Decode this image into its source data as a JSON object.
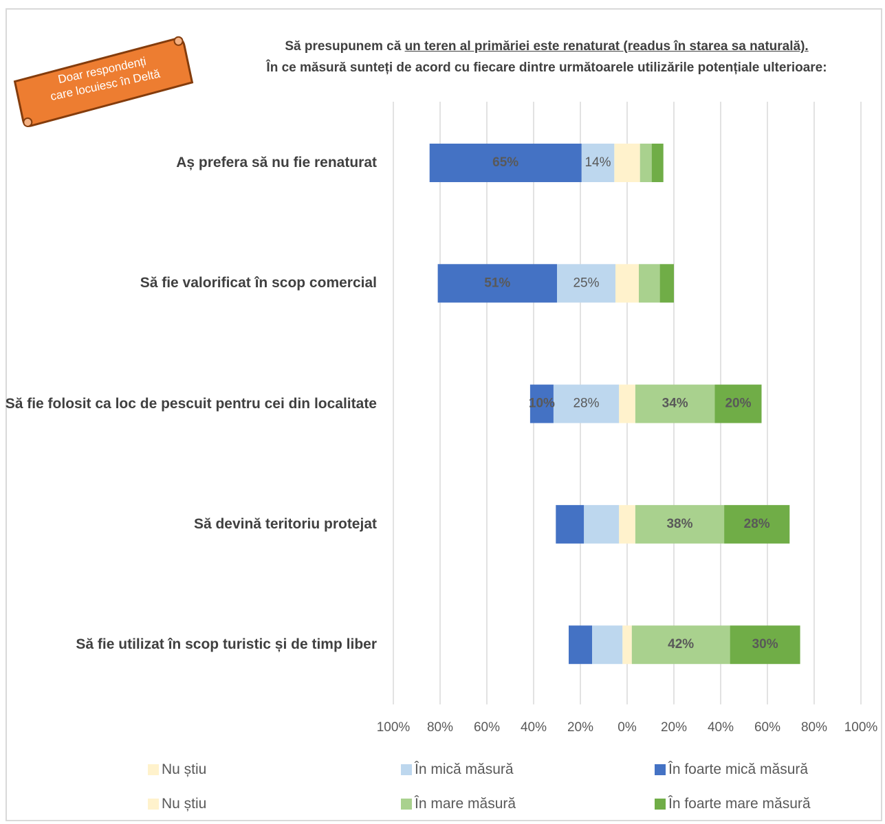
{
  "banner": [
    "Doar respondenți",
    "care locuiesc în Deltă"
  ],
  "chart_data": {
    "type": "diverging-bar",
    "title": "Să presupunem că",
    "title_underlined": "un teren al primăriei este renaturat (readus în starea sa naturală).",
    "title_rest": "În ce măsură sunteți de acord cu fiecare dintre următoarele utilizările potențiale ulterioare:",
    "categories": [
      "Aș prefera să nu fie renaturat",
      "Să fie valorificat în scop comercial",
      "Să fie folosit ca loc de pescuit pentru cei din localitate",
      "Să devină teritoriu protejat",
      "Să fie utilizat în scop turistic și de timp liber"
    ],
    "series": [
      {
        "name": "Nu știu",
        "color": "#fff2cc",
        "side": "left",
        "values": [
          5.5,
          5,
          3.5,
          3.5,
          2
        ]
      },
      {
        "name": "În mică măsură",
        "color": "#bdd7ee",
        "side": "left",
        "values": [
          14,
          25,
          28,
          15,
          13
        ],
        "value_labels": [
          "14%",
          "25%",
          "28%",
          null,
          null
        ]
      },
      {
        "name": "În foarte mică măsură",
        "color": "#4472c4",
        "side": "left",
        "values": [
          65,
          51,
          10,
          12,
          10
        ],
        "value_labels": [
          "65%",
          "51%",
          "10%",
          null,
          null
        ]
      },
      {
        "name": "Nu știu",
        "color": "#fff2cc",
        "side": "right",
        "values": [
          5.5,
          5,
          3.5,
          3.5,
          2
        ]
      },
      {
        "name": "În mare măsură",
        "color": "#a9d18e",
        "side": "right",
        "values": [
          5,
          9,
          34,
          38,
          42
        ],
        "value_labels": [
          null,
          null,
          "34%",
          "38%",
          "42%"
        ]
      },
      {
        "name": "În foarte mare măsură",
        "color": "#70ad47",
        "side": "right",
        "values": [
          5,
          6,
          20,
          28,
          30
        ],
        "value_labels": [
          null,
          null,
          "20%",
          "28%",
          "30%"
        ]
      }
    ],
    "xlim": [
      -100,
      100
    ],
    "xticks": [
      {
        "value": -100,
        "label": "100%"
      },
      {
        "value": -80,
        "label": "80%"
      },
      {
        "value": -60,
        "label": "60%"
      },
      {
        "value": -40,
        "label": "40%"
      },
      {
        "value": -20,
        "label": "20%"
      },
      {
        "value": 0,
        "label": "0%"
      },
      {
        "value": 20,
        "label": "20%"
      },
      {
        "value": 40,
        "label": "40%"
      },
      {
        "value": 60,
        "label": "60%"
      },
      {
        "value": 80,
        "label": "80%"
      },
      {
        "value": 100,
        "label": "100%"
      }
    ],
    "grid": true
  }
}
